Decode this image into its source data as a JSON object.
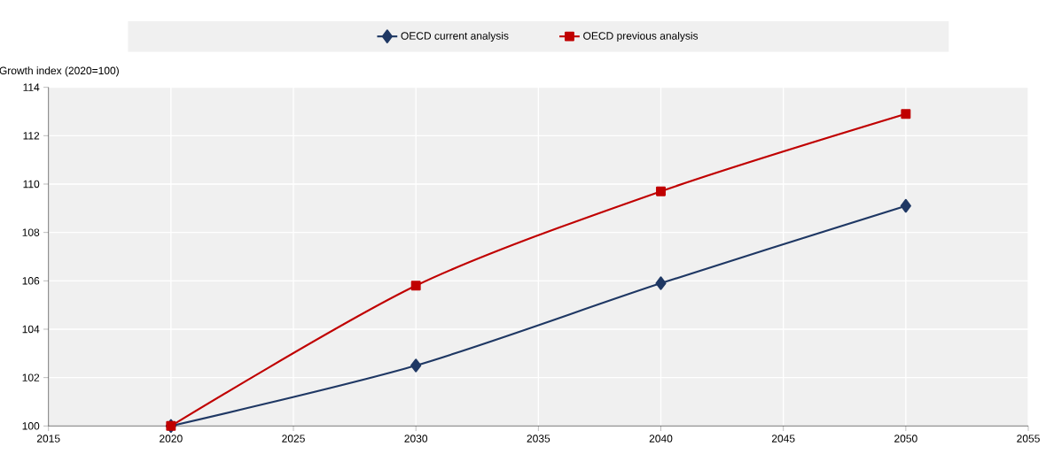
{
  "chart_data": {
    "type": "line",
    "ylabel": "Growth index (2020=100)",
    "x": [
      2020,
      2030,
      2040,
      2050
    ],
    "series": [
      {
        "name": "OECD current analysis",
        "color": "#1f3864",
        "marker": "diamond",
        "values": [
          100,
          102.5,
          105.9,
          109.1
        ]
      },
      {
        "name": "OECD previous analysis",
        "color": "#c00000",
        "marker": "square",
        "values": [
          100,
          105.8,
          109.7,
          112.9
        ]
      }
    ],
    "xlim": [
      2015,
      2055
    ],
    "xticks": [
      2015,
      2020,
      2025,
      2030,
      2035,
      2040,
      2045,
      2050,
      2055
    ],
    "ylim": [
      100,
      114
    ],
    "yticks": [
      100,
      102,
      104,
      106,
      108,
      110,
      112,
      114
    ],
    "grid": true,
    "legend": "top",
    "line_style": "solid"
  }
}
